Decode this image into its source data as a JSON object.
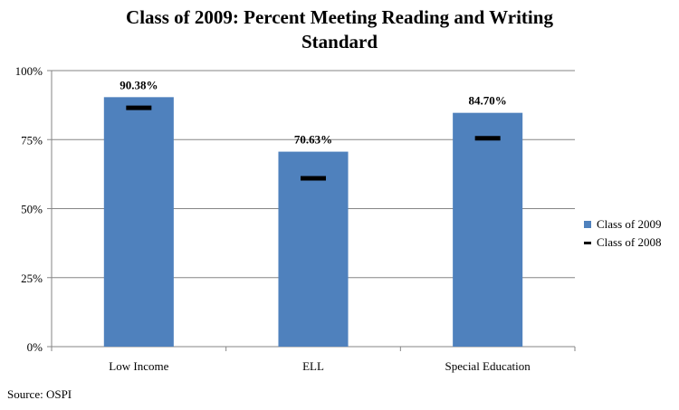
{
  "chart_data": {
    "type": "bar",
    "title_lines": [
      "Class of 2009: Percent Meeting Reading and Writing",
      "Standard"
    ],
    "categories": [
      "Low Income",
      "ELL",
      "Special Education"
    ],
    "series": [
      {
        "name": "Class of 2009",
        "kind": "bar",
        "color": "#4F81BD",
        "values": [
          90.38,
          70.63,
          84.7
        ]
      },
      {
        "name": "Class of 2008",
        "kind": "marker",
        "color": "#000000",
        "values": [
          86.5,
          61.0,
          75.5
        ]
      }
    ],
    "data_labels": [
      "90.38%",
      "70.63%",
      "84.70%"
    ],
    "ylim": [
      0,
      100
    ],
    "yticks": [
      0,
      25,
      50,
      75,
      100
    ],
    "ytick_labels": [
      "0%",
      "25%",
      "50%",
      "75%",
      "100%"
    ],
    "grid": true,
    "legend_position": "right"
  },
  "source_note": "Source: OSPI"
}
